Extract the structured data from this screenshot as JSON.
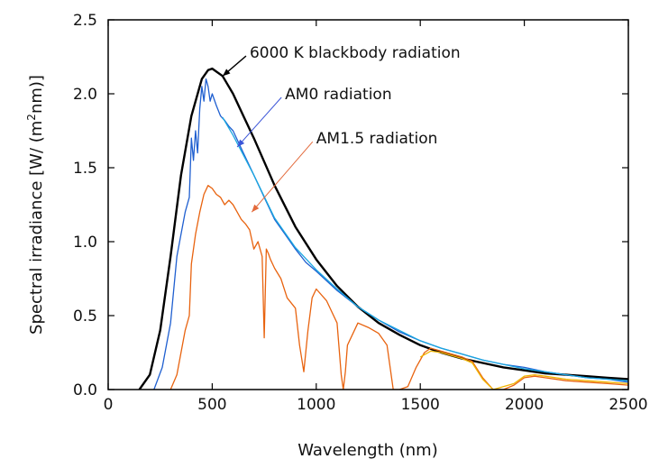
{
  "chart_data": {
    "type": "line",
    "xlabel": "Wavelength (nm)",
    "ylabel": {
      "main": "Spectral irradiance ",
      "unit_open": "[W/ (m",
      "unit_sup": "2",
      "unit_close": "nm)]"
    },
    "xlim": [
      0,
      2500
    ],
    "ylim": [
      0,
      2.5
    ],
    "xticks": [
      0,
      500,
      1000,
      1500,
      2000,
      2500
    ],
    "xtick_labels": [
      "0",
      "500",
      "1000",
      "1500",
      "2000",
      "2500"
    ],
    "yticks": [
      0,
      0.5,
      1.0,
      1.5,
      2.0,
      2.5
    ],
    "ytick_labels": [
      "0.0",
      "0.5",
      "1.0",
      "1.5",
      "2.0",
      "2.5"
    ],
    "grid": false,
    "legend": "none",
    "annotations": [
      {
        "text": "6000 K blackbody radiation",
        "x": 680,
        "y": 2.28,
        "point_x": 550,
        "point_y": 2.12,
        "color": "#000000"
      },
      {
        "text": "AM0 radiation",
        "x": 850,
        "y": 2.0,
        "point_x": 620,
        "point_y": 1.64,
        "color": "#3b55d8"
      },
      {
        "text": "AM1.5 radiation",
        "x": 1000,
        "y": 1.7,
        "point_x": 690,
        "point_y": 1.2,
        "color": "#e36a3b"
      }
    ],
    "series": [
      {
        "color": "#000000",
        "x": [
          150,
          200,
          250,
          300,
          350,
          400,
          450,
          480,
          500,
          550,
          600,
          650,
          700,
          800,
          900,
          1000,
          1100,
          1200,
          1300,
          1400,
          1500,
          1600,
          1700,
          1800,
          1900,
          2000,
          2100,
          2200,
          2300,
          2400,
          2500
        ],
        "y": [
          0.0,
          0.1,
          0.4,
          0.9,
          1.45,
          1.85,
          2.1,
          2.16,
          2.17,
          2.12,
          2.0,
          1.85,
          1.7,
          1.38,
          1.1,
          0.88,
          0.7,
          0.56,
          0.45,
          0.37,
          0.3,
          0.25,
          0.21,
          0.18,
          0.15,
          0.13,
          0.11,
          0.1,
          0.09,
          0.08,
          0.07
        ]
      },
      {
        "color": "#1f5fd0",
        "x": [
          220,
          260,
          300,
          330,
          350,
          370,
          390,
          400,
          410,
          420,
          430,
          440,
          450,
          460,
          470,
          480,
          490,
          500,
          520,
          540,
          560,
          580,
          600,
          650,
          700,
          750,
          800,
          850,
          900,
          950,
          1000,
          1100,
          1200,
          1300,
          1400,
          1500,
          1600,
          1700,
          1800,
          1900,
          2000,
          2100,
          2200,
          2300,
          2400,
          2500
        ],
        "y": [
          0.0,
          0.15,
          0.45,
          0.9,
          1.05,
          1.2,
          1.3,
          1.7,
          1.55,
          1.75,
          1.6,
          1.9,
          2.05,
          1.95,
          2.1,
          2.05,
          1.95,
          2.0,
          1.92,
          1.85,
          1.82,
          1.78,
          1.75,
          1.6,
          1.45,
          1.3,
          1.15,
          1.05,
          0.95,
          0.86,
          0.8,
          0.67,
          0.56,
          0.47,
          0.39,
          0.33,
          0.28,
          0.24,
          0.2,
          0.17,
          0.15,
          0.12,
          0.1,
          0.08,
          0.07,
          0.05
        ]
      },
      {
        "color": "#1aa7e0",
        "x": [
          550,
          600,
          700,
          800,
          900,
          1000,
          1100,
          1200,
          1300,
          1400,
          1500,
          1600,
          1700,
          1800,
          1900,
          2000,
          2100,
          2200,
          2300,
          2400,
          2500
        ],
        "y": [
          1.84,
          1.72,
          1.45,
          1.16,
          0.96,
          0.81,
          0.68,
          0.56,
          0.47,
          0.4,
          0.33,
          0.28,
          0.24,
          0.2,
          0.17,
          0.14,
          0.12,
          0.1,
          0.08,
          0.07,
          0.06
        ]
      },
      {
        "color": "#e8630f",
        "x": [
          300,
          330,
          350,
          370,
          390,
          400,
          420,
          440,
          460,
          480,
          500,
          520,
          540,
          560,
          580,
          600,
          620,
          640,
          660,
          680,
          700,
          720,
          740,
          750,
          760,
          770,
          780,
          800,
          830,
          860,
          900,
          920,
          940,
          960,
          980,
          1000,
          1050,
          1100,
          1120,
          1130,
          1140,
          1150,
          1200,
          1250,
          1300,
          1340,
          1370,
          1400,
          1440,
          1480,
          1520,
          1550,
          1600,
          1650,
          1700,
          1750,
          1800,
          1850,
          1900,
          1950,
          2000,
          2050,
          2100,
          2200,
          2300,
          2400,
          2500
        ],
        "y": [
          0.0,
          0.1,
          0.25,
          0.4,
          0.5,
          0.85,
          1.05,
          1.2,
          1.32,
          1.38,
          1.36,
          1.32,
          1.3,
          1.25,
          1.28,
          1.25,
          1.2,
          1.15,
          1.12,
          1.08,
          0.95,
          1.0,
          0.9,
          0.35,
          0.95,
          0.92,
          0.88,
          0.82,
          0.75,
          0.62,
          0.55,
          0.3,
          0.12,
          0.4,
          0.62,
          0.68,
          0.6,
          0.45,
          0.1,
          0.0,
          0.12,
          0.3,
          0.45,
          0.42,
          0.38,
          0.3,
          0.0,
          0.0,
          0.02,
          0.15,
          0.25,
          0.28,
          0.26,
          0.24,
          0.22,
          0.19,
          0.08,
          0.0,
          0.0,
          0.03,
          0.08,
          0.09,
          0.08,
          0.06,
          0.05,
          0.04,
          0.03
        ]
      },
      {
        "color": "#f0b400",
        "x": [
          1500,
          1550,
          1600,
          1650,
          1700,
          1750,
          1800,
          1850,
          1950,
          2000,
          2050,
          2100,
          2200,
          2300,
          2400,
          2500
        ],
        "y": [
          0.22,
          0.26,
          0.25,
          0.23,
          0.21,
          0.18,
          0.07,
          0.0,
          0.04,
          0.09,
          0.1,
          0.09,
          0.07,
          0.06,
          0.05,
          0.04
        ]
      }
    ]
  }
}
